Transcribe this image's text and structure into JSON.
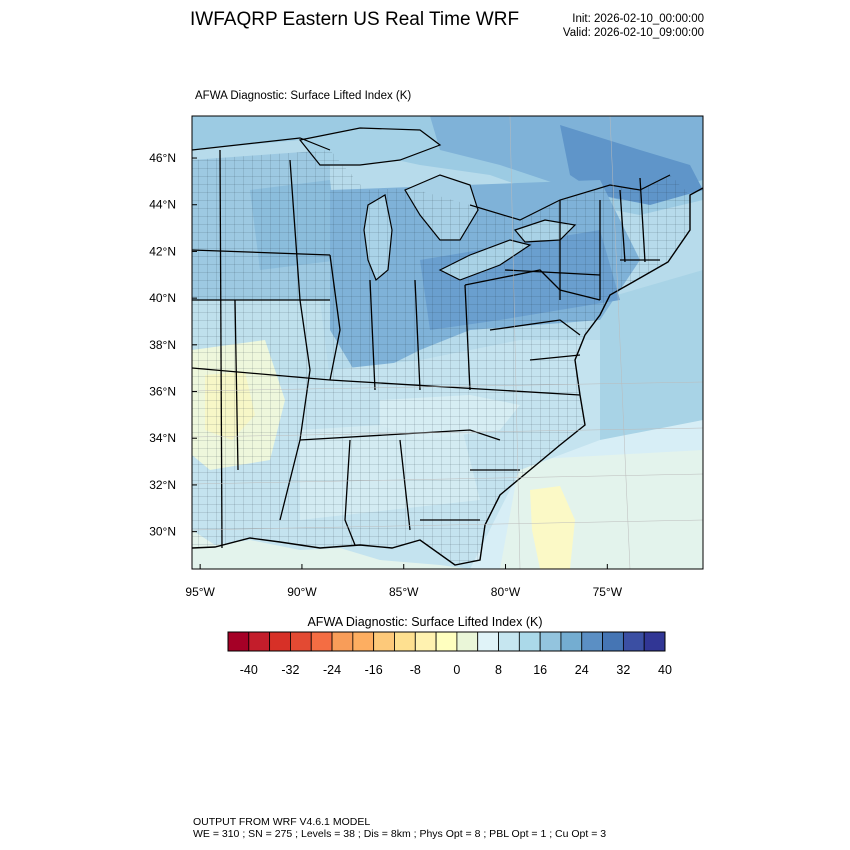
{
  "header": {
    "title": "IWFAQRP Eastern US Real Time WRF",
    "init": "Init: 2026-02-10_00:00:00",
    "valid": "Valid: 2026-02-10_09:00:00"
  },
  "map": {
    "subtitle": "AFWA Diagnostic: Surface Lifted Index   (K)",
    "lat_labels": [
      "46°N",
      "44°N",
      "42°N",
      "40°N",
      "38°N",
      "36°N",
      "34°N",
      "32°N",
      "30°N"
    ],
    "lon_labels": [
      "95°W",
      "90°W",
      "85°W",
      "80°W",
      "75°W"
    ],
    "extent": {
      "lon_min": -95.4,
      "lon_max": -70.3,
      "lat_min": 28.4,
      "lat_max": 47.8
    }
  },
  "colorbar": {
    "title": "AFWA Diagnostic: Surface Lifted Index  (K)",
    "tick_labels": [
      "-40",
      "-32",
      "-24",
      "-16",
      "-8",
      "0",
      "8",
      "16",
      "24",
      "32",
      "40"
    ],
    "colors": [
      "#a50026",
      "#c31d2b",
      "#d73027",
      "#e34a33",
      "#f46d43",
      "#f89d59",
      "#fdae61",
      "#fdc97a",
      "#fee090",
      "#fff2b0",
      "#ffffbf",
      "#eaf6d8",
      "#e0f3f8",
      "#c6e6f0",
      "#abd9e9",
      "#93c4de",
      "#74add1",
      "#5b8fc4",
      "#4575b4",
      "#3b4fa3",
      "#313695"
    ]
  },
  "footer": {
    "line1": "OUTPUT FROM WRF V4.6.1 MODEL",
    "line2": "WE = 310 ; SN = 275 ; Levels = 38 ; Dis = 8km ; Phys Opt = 8 ; PBL Opt = 1 ; Cu Opt = 3"
  }
}
